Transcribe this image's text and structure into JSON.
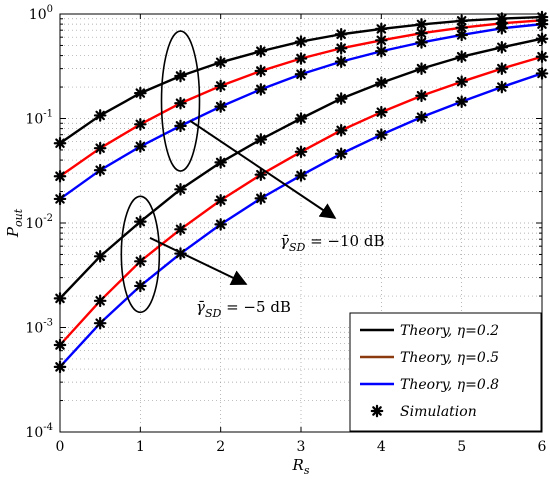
{
  "chart_data": {
    "type": "line",
    "xlabel": "R_s",
    "ylabel": "P_out",
    "xlim": [
      0,
      6
    ],
    "ylim": [
      0.0001,
      1
    ],
    "yscale": "log",
    "grid": true,
    "legend_position": "bottom-right",
    "x_ticks": [
      "0",
      "1",
      "2",
      "3",
      "4",
      "5",
      "6"
    ],
    "y_ticks": [
      {
        "base": "10",
        "exp": "-4"
      },
      {
        "base": "10",
        "exp": "-3"
      },
      {
        "base": "10",
        "exp": "-2"
      },
      {
        "base": "10",
        "exp": "-1"
      },
      {
        "base": "10",
        "exp": "0"
      }
    ],
    "x": [
      0,
      0.5,
      1,
      1.5,
      2,
      2.5,
      3,
      3.5,
      4,
      4.5,
      5,
      5.5,
      6
    ],
    "series": [
      {
        "name": "Theory, η = 0.2",
        "group": "γSD = −10 dB",
        "color": "#000000",
        "values": [
          0.058,
          0.107,
          0.175,
          0.255,
          0.345,
          0.44,
          0.545,
          0.64,
          0.72,
          0.795,
          0.86,
          0.905,
          0.935
        ]
      },
      {
        "name": "Theory, η = 0.5",
        "group": "γSD = −10 dB",
        "color": "#ff0000",
        "values": [
          0.028,
          0.052,
          0.088,
          0.14,
          0.205,
          0.285,
          0.375,
          0.47,
          0.56,
          0.655,
          0.74,
          0.815,
          0.87
        ]
      },
      {
        "name": "Theory, η = 0.8",
        "group": "γSD = −10 dB",
        "color": "#0000ff",
        "values": [
          0.017,
          0.032,
          0.054,
          0.085,
          0.13,
          0.19,
          0.265,
          0.35,
          0.44,
          0.535,
          0.63,
          0.73,
          0.8
        ]
      },
      {
        "name": "Theory, η = 0.2",
        "group": "γSD = −5 dB",
        "color": "#000000",
        "values": [
          0.0019,
          0.0048,
          0.0103,
          0.021,
          0.038,
          0.063,
          0.1,
          0.155,
          0.22,
          0.3,
          0.39,
          0.48,
          0.58
        ]
      },
      {
        "name": "Theory, η = 0.5",
        "group": "γSD = −5 dB",
        "color": "#ff0000",
        "values": [
          0.00068,
          0.0018,
          0.0043,
          0.0087,
          0.0165,
          0.029,
          0.048,
          0.077,
          0.115,
          0.165,
          0.225,
          0.3,
          0.39
        ]
      },
      {
        "name": "Theory, η = 0.8",
        "group": "γSD = −5 dB",
        "color": "#0000ff",
        "values": [
          0.00042,
          0.0011,
          0.0025,
          0.0051,
          0.0097,
          0.0172,
          0.0285,
          0.046,
          0.07,
          0.103,
          0.145,
          0.2,
          0.27
        ]
      }
    ],
    "legend": [
      {
        "label": "Theory, η = 0.2",
        "color": "#000000",
        "marker": "line"
      },
      {
        "label": "Theory, η = 0.5",
        "color": "#8b3a0f",
        "marker": "line"
      },
      {
        "label": "Theory, η = 0.8",
        "color": "#0000ff",
        "marker": "line"
      },
      {
        "label": "Simulation",
        "color": "#000000",
        "marker": "asterisk"
      }
    ],
    "annotations": [
      {
        "text": "γ̄SD = −10 dB",
        "target_x": 1.45,
        "target_y": 0.13
      },
      {
        "text": "γ̄SD = −5 dB",
        "target_x": 1.0,
        "target_y": 0.0045
      }
    ]
  }
}
